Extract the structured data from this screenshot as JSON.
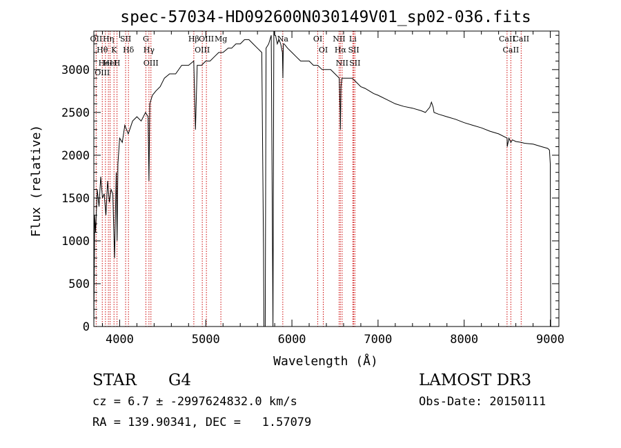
{
  "chart_data": {
    "type": "line",
    "title": "spec-57034-HD092600N030149V01_sp02-036.fits",
    "xlabel": "Wavelength (Å)",
    "ylabel": "Flux (relative)",
    "xlim": [
      3700,
      9100
    ],
    "ylim": [
      0,
      3450
    ],
    "xticks": [
      4000,
      5000,
      6000,
      7000,
      8000,
      9000
    ],
    "yticks": [
      0,
      500,
      1000,
      1500,
      2000,
      2500,
      3000
    ],
    "grid": false,
    "line_color": "#000000",
    "marker_color": "#cc0000",
    "series": [
      {
        "x": [
          3700,
          3710,
          3720,
          3740,
          3760,
          3780,
          3800,
          3820,
          3840,
          3860,
          3880,
          3900,
          3920,
          3940,
          3960,
          3970,
          3980,
          4000,
          4030,
          4060,
          4100,
          4150,
          4200,
          4250,
          4300,
          4330,
          4340,
          4350,
          4380,
          4420,
          4470,
          4520,
          4580,
          4650,
          4720,
          4800,
          4860,
          4880,
          4900,
          4950,
          5000,
          5050,
          5100,
          5150,
          5200,
          5260,
          5300,
          5350,
          5400,
          5450,
          5500,
          5550,
          5600,
          5650,
          5670,
          5675,
          5690,
          5700,
          5730,
          5760,
          5780,
          5790,
          5800,
          5810,
          5830,
          5850,
          5870,
          5890,
          5895,
          5900,
          5910,
          5950,
          6000,
          6050,
          6100,
          6150,
          6200,
          6250,
          6300,
          6350,
          6400,
          6450,
          6500,
          6550,
          6560,
          6563,
          6570,
          6580,
          6600,
          6650,
          6700,
          6750,
          6800,
          6850,
          6900,
          6950,
          7000,
          7100,
          7200,
          7300,
          7400,
          7500,
          7550,
          7600,
          7620,
          7640,
          7650,
          7700,
          7800,
          7900,
          8000,
          8100,
          8200,
          8300,
          8400,
          8498,
          8500,
          8520,
          8542,
          8560,
          8600,
          8662,
          8700,
          8800,
          8900,
          8970,
          8990,
          9000,
          9005
        ],
        "y": [
          0,
          1300,
          1100,
          1600,
          1400,
          1750,
          1500,
          1550,
          1300,
          1700,
          1450,
          1600,
          1550,
          800,
          1800,
          1000,
          1900,
          2200,
          2150,
          2350,
          2250,
          2400,
          2450,
          2400,
          2500,
          2450,
          1700,
          2600,
          2700,
          2750,
          2800,
          2900,
          2950,
          2950,
          3050,
          3050,
          3100,
          2300,
          3050,
          3050,
          3100,
          3100,
          3150,
          3200,
          3200,
          3250,
          3250,
          3300,
          3300,
          3350,
          3350,
          3300,
          3250,
          3200,
          900,
          0,
          0,
          3250,
          3300,
          3400,
          0,
          3450,
          3400,
          3400,
          3300,
          3350,
          3300,
          3200,
          2900,
          3300,
          3300,
          3250,
          3200,
          3150,
          3100,
          3100,
          3100,
          3050,
          3050,
          3000,
          3000,
          3000,
          2950,
          2900,
          2500,
          2300,
          2800,
          2900,
          2900,
          2900,
          2900,
          2850,
          2800,
          2780,
          2750,
          2720,
          2700,
          2650,
          2600,
          2570,
          2550,
          2520,
          2500,
          2560,
          2620,
          2560,
          2500,
          2480,
          2450,
          2420,
          2380,
          2350,
          2320,
          2280,
          2250,
          2200,
          2100,
          2200,
          2150,
          2180,
          2160,
          2150,
          2140,
          2130,
          2100,
          2080,
          2060,
          1900,
          0
        ]
      }
    ],
    "lines": [
      {
        "wl": 3727,
        "labels": [
          "OII"
        ]
      },
      {
        "wl": 3798,
        "labels": [
          "Hθ",
          "OIII"
        ]
      },
      {
        "wl": 3835,
        "labels": [
          "HeI"
        ]
      },
      {
        "wl": 3869,
        "labels": [
          "Hη"
        ]
      },
      {
        "wl": 3889,
        "labels": [
          "HeI"
        ]
      },
      {
        "wl": 3934,
        "labels": [
          "K"
        ]
      },
      {
        "wl": 3969,
        "labels": [
          "H"
        ]
      },
      {
        "wl": 4069,
        "labels": [
          "SII"
        ]
      },
      {
        "wl": 4102,
        "labels": [
          "Hδ"
        ]
      },
      {
        "wl": 4304,
        "labels": [
          "G"
        ]
      },
      {
        "wl": 4340,
        "labels": [
          "Hγ"
        ]
      },
      {
        "wl": 4363,
        "labels": [
          "OIII"
        ]
      },
      {
        "wl": 4861,
        "labels": [
          "Hβ"
        ]
      },
      {
        "wl": 4959,
        "labels": [
          "OIII"
        ]
      },
      {
        "wl": 5007,
        "labels": [
          "OIII"
        ]
      },
      {
        "wl": 5175,
        "labels": [
          "Mg"
        ]
      },
      {
        "wl": 5894,
        "labels": [
          "Na"
        ]
      },
      {
        "wl": 6300,
        "labels": [
          "OI"
        ]
      },
      {
        "wl": 6364,
        "labels": [
          "OI"
        ]
      },
      {
        "wl": 6548,
        "labels": [
          "NII"
        ]
      },
      {
        "wl": 6563,
        "labels": [
          "Hα"
        ]
      },
      {
        "wl": 6583,
        "labels": [
          "NII"
        ]
      },
      {
        "wl": 6707,
        "labels": [
          "Li"
        ]
      },
      {
        "wl": 6717,
        "labels": [
          "SII"
        ]
      },
      {
        "wl": 6731,
        "labels": [
          "SII"
        ]
      },
      {
        "wl": 8498,
        "labels": [
          "CaII"
        ]
      },
      {
        "wl": 8542,
        "labels": [
          "CaII"
        ]
      },
      {
        "wl": 8662,
        "labels": [
          "CaII"
        ]
      }
    ]
  },
  "info": {
    "class": "STAR",
    "subclass": "G4",
    "survey": "LAMOST DR3",
    "cz": "cz = 6.7 ± -2997624832.0 km/s",
    "obs_date": "Obs-Date: 20150111",
    "coords": "RA = 139.90341, DEC =   1.57079"
  }
}
